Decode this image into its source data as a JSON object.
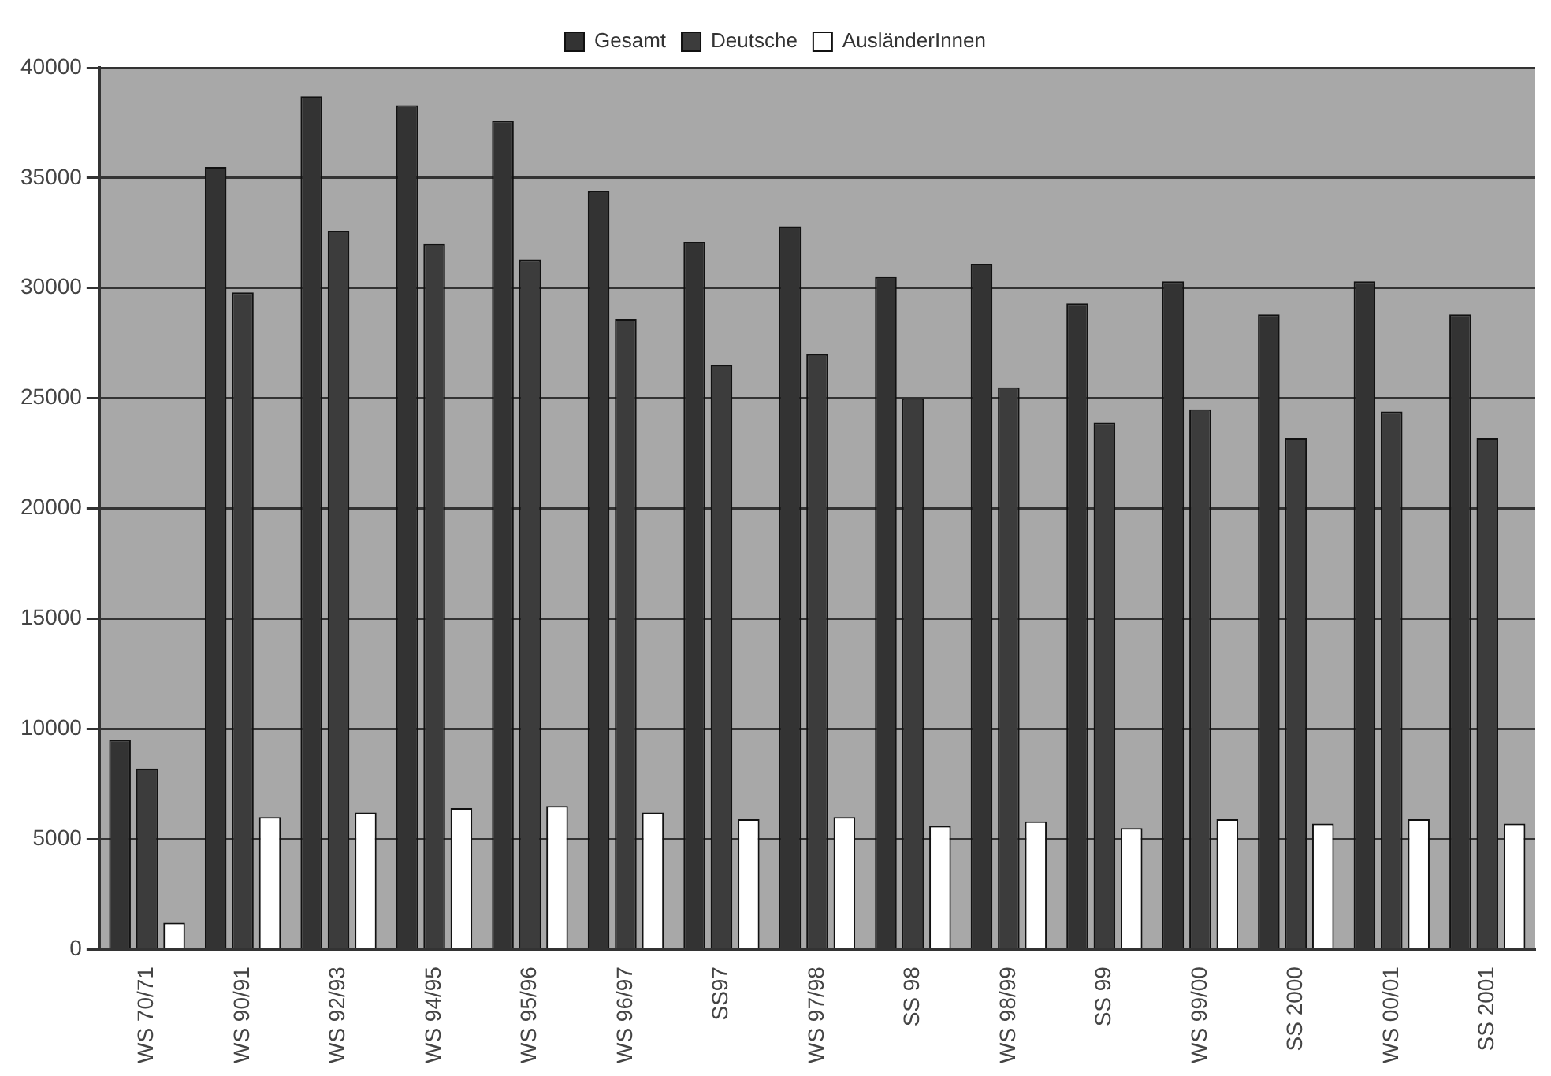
{
  "chart_data": {
    "type": "bar",
    "categories": [
      "WS 70/71",
      "WS 90/91",
      "WS 92/93",
      "WS 94/95",
      "WS 95/96",
      "WS 96/97",
      "SS97",
      "WS 97/98",
      "SS 98",
      "WS 98/99",
      "SS 99",
      "WS 99/00",
      "SS 2000",
      "WS 00/01",
      "SS 2001"
    ],
    "series": [
      {
        "name": "Gesamt",
        "color": "#333333",
        "values": [
          9500,
          35500,
          38700,
          38300,
          37600,
          34400,
          32100,
          32800,
          30500,
          31100,
          29300,
          30300,
          28800,
          30300,
          28800
        ]
      },
      {
        "name": "Deutsche",
        "color": "#3c3c3c",
        "values": [
          8200,
          29800,
          32600,
          32000,
          31300,
          28600,
          26500,
          27000,
          25000,
          25500,
          23900,
          24500,
          23200,
          24400,
          23200
        ]
      },
      {
        "name": "AusländerInnen",
        "color": "#ffffff",
        "values": [
          1200,
          6000,
          6200,
          6400,
          6500,
          6200,
          5900,
          6000,
          5600,
          5800,
          5500,
          5900,
          5700,
          5900,
          5700
        ]
      }
    ],
    "ylim": [
      0,
      40000
    ],
    "yticks": [
      0,
      5000,
      10000,
      15000,
      20000,
      25000,
      30000,
      35000,
      40000
    ],
    "grid": "y",
    "legend": "top"
  }
}
